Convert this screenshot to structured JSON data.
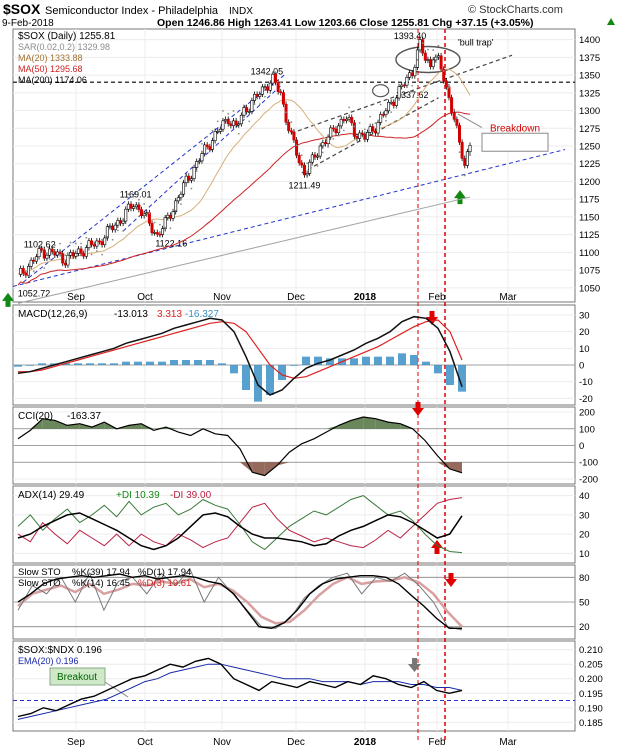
{
  "header": {
    "symbol": "$SOX",
    "name": "Semiconductor Index - Philadelphia",
    "exchange": "INDX",
    "date": "9-Feb-2018",
    "ohlc": "Open 1246.86  High 1263.41  Low 1203.66  Close 1255.81  Chg +37.15 (+3.05%)",
    "change_icon": "up-triangle-icon",
    "watermark": "© StockCharts.com"
  },
  "colors": {
    "up": "#e0e0e0",
    "down": "#d40000",
    "ma20": "#d4b07a",
    "ma50": "#cc2222",
    "ma200": "#a0a0a0",
    "sar": "#8c8c8c",
    "trend": "#2233cc",
    "arrow_red": "#e00000",
    "arrow_green": "#118811",
    "hist": "#3b8fc6",
    "macd": "#111111",
    "signal": "#dd2222"
  },
  "x_axis": {
    "labels": [
      "Sep",
      "Oct",
      "Nov",
      "Dec",
      "2018",
      "Feb",
      "Mar"
    ]
  },
  "chart_data": [
    {
      "type": "line",
      "title": "$SOX (Daily) 1255.81",
      "legend": [
        {
          "name": "SAR(0.02,0.2) 1329.98",
          "color": "#8c8c8c"
        },
        {
          "name": "MA(20) 1333.88",
          "color": "#d4b07a"
        },
        {
          "name": "MA(50) 1295.68",
          "color": "#cc2222"
        },
        {
          "name": "MA(200) 1174.06",
          "color": "#a0a0a0"
        }
      ],
      "ylim": [
        1030,
        1415
      ],
      "yticks": [
        1050,
        1075,
        1100,
        1125,
        1150,
        1175,
        1200,
        1225,
        1250,
        1275,
        1300,
        1325,
        1350,
        1375,
        1400
      ],
      "price_path": [
        [
          0,
          1065
        ],
        [
          5,
          1085
        ],
        [
          9,
          1102
        ],
        [
          14,
          1098
        ],
        [
          18,
          1090
        ],
        [
          22,
          1098
        ],
        [
          27,
          1108
        ],
        [
          31,
          1115
        ],
        [
          35,
          1132
        ],
        [
          40,
          1150
        ],
        [
          44,
          1169
        ],
        [
          47,
          1158
        ],
        [
          50,
          1140
        ],
        [
          53,
          1124
        ],
        [
          56,
          1140
        ],
        [
          60,
          1170
        ],
        [
          64,
          1200
        ],
        [
          68,
          1225
        ],
        [
          72,
          1250
        ],
        [
          76,
          1270
        ],
        [
          80,
          1290
        ],
        [
          83,
          1275
        ],
        [
          86,
          1300
        ],
        [
          90,
          1315
        ],
        [
          94,
          1335
        ],
        [
          97,
          1342
        ],
        [
          100,
          1325
        ],
        [
          102,
          1290
        ],
        [
          104,
          1262
        ],
        [
          107,
          1230
        ],
        [
          109,
          1212
        ],
        [
          112,
          1228
        ],
        [
          115,
          1250
        ],
        [
          119,
          1266
        ],
        [
          122,
          1282
        ],
        [
          125,
          1290
        ],
        [
          128,
          1270
        ],
        [
          132,
          1262
        ],
        [
          136,
          1278
        ],
        [
          140,
          1300
        ],
        [
          144,
          1322
        ],
        [
          147,
          1338
        ],
        [
          150,
          1356
        ],
        [
          153,
          1393
        ],
        [
          155,
          1372
        ],
        [
          157,
          1365
        ],
        [
          158,
          1380
        ],
        [
          160,
          1368
        ],
        [
          162,
          1346
        ],
        [
          164,
          1318
        ],
        [
          166,
          1290
        ],
        [
          168,
          1250
        ],
        [
          170,
          1225
        ],
        [
          172,
          1255
        ]
      ],
      "annotations": [
        {
          "text": "1102.62",
          "x": 9,
          "y": 1102.62
        },
        {
          "text": "1169.01",
          "x": 44,
          "y": 1169.01
        },
        {
          "text": "1122.16",
          "x": 53,
          "y": 1122.16
        },
        {
          "text": "1342.05",
          "x": 97,
          "y": 1342.05
        },
        {
          "text": "1211.49",
          "x": 109,
          "y": 1211.49
        },
        {
          "text": "1337.62",
          "x": 147,
          "y": 1337.62
        },
        {
          "text": "1393.40",
          "x": 153,
          "y": 1393.4
        },
        {
          "text": "1052.72",
          "x": 0,
          "y": 1052.72
        },
        {
          "text": "'bull trap'",
          "x": 162,
          "y": 1375
        },
        {
          "text": "Breakdown",
          "x": 178,
          "y": 1275
        }
      ]
    },
    {
      "type": "line",
      "title": "MACD(12,26,9)",
      "series": [
        {
          "name": "-13.013",
          "values": [
            -5,
            -4,
            -2,
            0,
            2,
            4,
            6,
            8,
            10,
            13,
            15,
            17,
            19,
            22,
            24,
            26,
            28,
            27,
            20,
            5,
            -12,
            -18,
            -15,
            -8,
            -2,
            1,
            3,
            6,
            9,
            13,
            16,
            20,
            26,
            29,
            28,
            22,
            8,
            -13
          ]
        },
        {
          "name": "3.313",
          "values": [
            -4,
            -4,
            -3,
            -1,
            1,
            3,
            5,
            7,
            9,
            11,
            13,
            15,
            17,
            19,
            21,
            23,
            25,
            26,
            25,
            20,
            10,
            0,
            -6,
            -8,
            -7,
            -4,
            -1,
            2,
            5,
            8,
            11,
            15,
            19,
            23,
            26,
            27,
            20,
            3
          ]
        },
        {
          "name": "-16.327",
          "values": [
            -1,
            0,
            1,
            1,
            1,
            1,
            1,
            1,
            1,
            2,
            2,
            2,
            2,
            3,
            3,
            3,
            3,
            1,
            -5,
            -15,
            -22,
            -18,
            -9,
            0,
            5,
            5,
            4,
            4,
            4,
            5,
            5,
            5,
            7,
            6,
            2,
            -5,
            -12,
            -16
          ]
        }
      ],
      "ylim": [
        -24,
        36
      ],
      "yticks": [
        -20,
        -10,
        0,
        10,
        20,
        30
      ]
    },
    {
      "type": "line",
      "title": "CCI(20)",
      "series": [
        {
          "name": "-163.37",
          "values": [
            40,
            90,
            160,
            150,
            120,
            130,
            110,
            140,
            100,
            120,
            130,
            90,
            110,
            80,
            60,
            100,
            70,
            60,
            -20,
            -160,
            -180,
            -120,
            -40,
            10,
            40,
            80,
            120,
            150,
            170,
            160,
            140,
            130,
            100,
            30,
            -60,
            -140,
            -163
          ]
        }
      ],
      "ylim": [
        -230,
        230
      ],
      "yticks": [
        -200,
        -100,
        0,
        100,
        200
      ]
    },
    {
      "type": "line",
      "title": "ADX(14) 29.49",
      "series": [
        {
          "name": "29.49",
          "values": [
            18,
            20,
            24,
            27,
            30,
            31,
            28,
            25,
            22,
            18,
            14,
            12,
            14,
            18,
            24,
            30,
            31,
            29,
            24,
            20,
            18,
            18,
            17,
            16,
            14,
            15,
            19,
            22,
            24,
            27,
            30,
            29,
            26,
            22,
            18,
            20,
            29.5
          ]
        },
        {
          "name": "+DI 10.39",
          "values": [
            24,
            30,
            22,
            28,
            33,
            26,
            30,
            35,
            29,
            37,
            30,
            34,
            36,
            30,
            33,
            38,
            35,
            33,
            25,
            16,
            12,
            18,
            24,
            28,
            32,
            30,
            34,
            38,
            40,
            35,
            30,
            32,
            27,
            20,
            14,
            11,
            10.4
          ]
        },
        {
          "name": "-DI 39.00",
          "values": [
            20,
            16,
            26,
            20,
            15,
            22,
            18,
            14,
            20,
            14,
            20,
            16,
            14,
            20,
            17,
            13,
            16,
            18,
            26,
            34,
            36,
            28,
            22,
            19,
            16,
            18,
            16,
            14,
            13,
            17,
            22,
            18,
            24,
            30,
            36,
            38,
            39
          ]
        }
      ],
      "ylim": [
        5,
        45
      ],
      "yticks": [
        10,
        20,
        30,
        40
      ]
    },
    {
      "type": "line",
      "title": "Slow STO",
      "series": [
        {
          "name": "%K(39) 17.94",
          "values": [
            50,
            60,
            72,
            78,
            80,
            82,
            80,
            82,
            84,
            80,
            82,
            78,
            80,
            82,
            80,
            75,
            72,
            60,
            40,
            20,
            18,
            25,
            40,
            60,
            72,
            78,
            80,
            82,
            82,
            80,
            72,
            58,
            45,
            30,
            18,
            18
          ]
        },
        {
          "name": "%D(1) 17.94",
          "values": [
            50,
            60,
            72,
            78,
            80,
            82,
            80,
            82,
            84,
            80,
            82,
            78,
            80,
            82,
            80,
            75,
            72,
            60,
            40,
            20,
            18,
            25,
            40,
            60,
            72,
            78,
            80,
            82,
            82,
            80,
            72,
            58,
            45,
            30,
            18,
            18
          ]
        },
        {
          "name": "%K(14) 16.45",
          "values": [
            40,
            70,
            60,
            80,
            50,
            85,
            40,
            75,
            80,
            60,
            85,
            70,
            90,
            50,
            80,
            60,
            40,
            20,
            18,
            30,
            55,
            70,
            80,
            85,
            60,
            80,
            75,
            85,
            70,
            50,
            20,
            16
          ]
        },
        {
          "name": "%D(3) 19.61",
          "values": [
            45,
            60,
            65,
            70,
            62,
            72,
            60,
            65,
            72,
            70,
            75,
            72,
            78,
            68,
            72,
            64,
            50,
            32,
            24,
            26,
            40,
            58,
            72,
            80,
            72,
            75,
            76,
            80,
            74,
            60,
            38,
            20
          ]
        }
      ],
      "ylim": [
        5,
        95
      ],
      "yticks": [
        20,
        50,
        80
      ]
    },
    {
      "type": "line",
      "title": "$SOX:$NDX 0.196",
      "series": [
        {
          "name": "0.196",
          "values": [
            0.187,
            0.188,
            0.19,
            0.189,
            0.191,
            0.193,
            0.194,
            0.196,
            0.198,
            0.2,
            0.201,
            0.203,
            0.205,
            0.204,
            0.206,
            0.207,
            0.205,
            0.2,
            0.198,
            0.196,
            0.199,
            0.198,
            0.197,
            0.199,
            0.198,
            0.197,
            0.199,
            0.198,
            0.201,
            0.2,
            0.198,
            0.197,
            0.199,
            0.196,
            0.195,
            0.196
          ]
        },
        {
          "name": "EMA(20) 0.196",
          "values": [
            0.186,
            0.187,
            0.188,
            0.189,
            0.19,
            0.191,
            0.192,
            0.193,
            0.195,
            0.197,
            0.199,
            0.2,
            0.202,
            0.203,
            0.204,
            0.205,
            0.205,
            0.204,
            0.203,
            0.202,
            0.201,
            0.2,
            0.2,
            0.2,
            0.199,
            0.199,
            0.199,
            0.198,
            0.199,
            0.199,
            0.199,
            0.198,
            0.198,
            0.197,
            0.197,
            0.196
          ]
        }
      ],
      "ylim": [
        0.182,
        0.213
      ],
      "yticks": [
        0.185,
        0.19,
        0.195,
        0.2,
        0.205,
        0.21
      ],
      "annotations": [
        {
          "text": "Breakout"
        }
      ]
    }
  ]
}
